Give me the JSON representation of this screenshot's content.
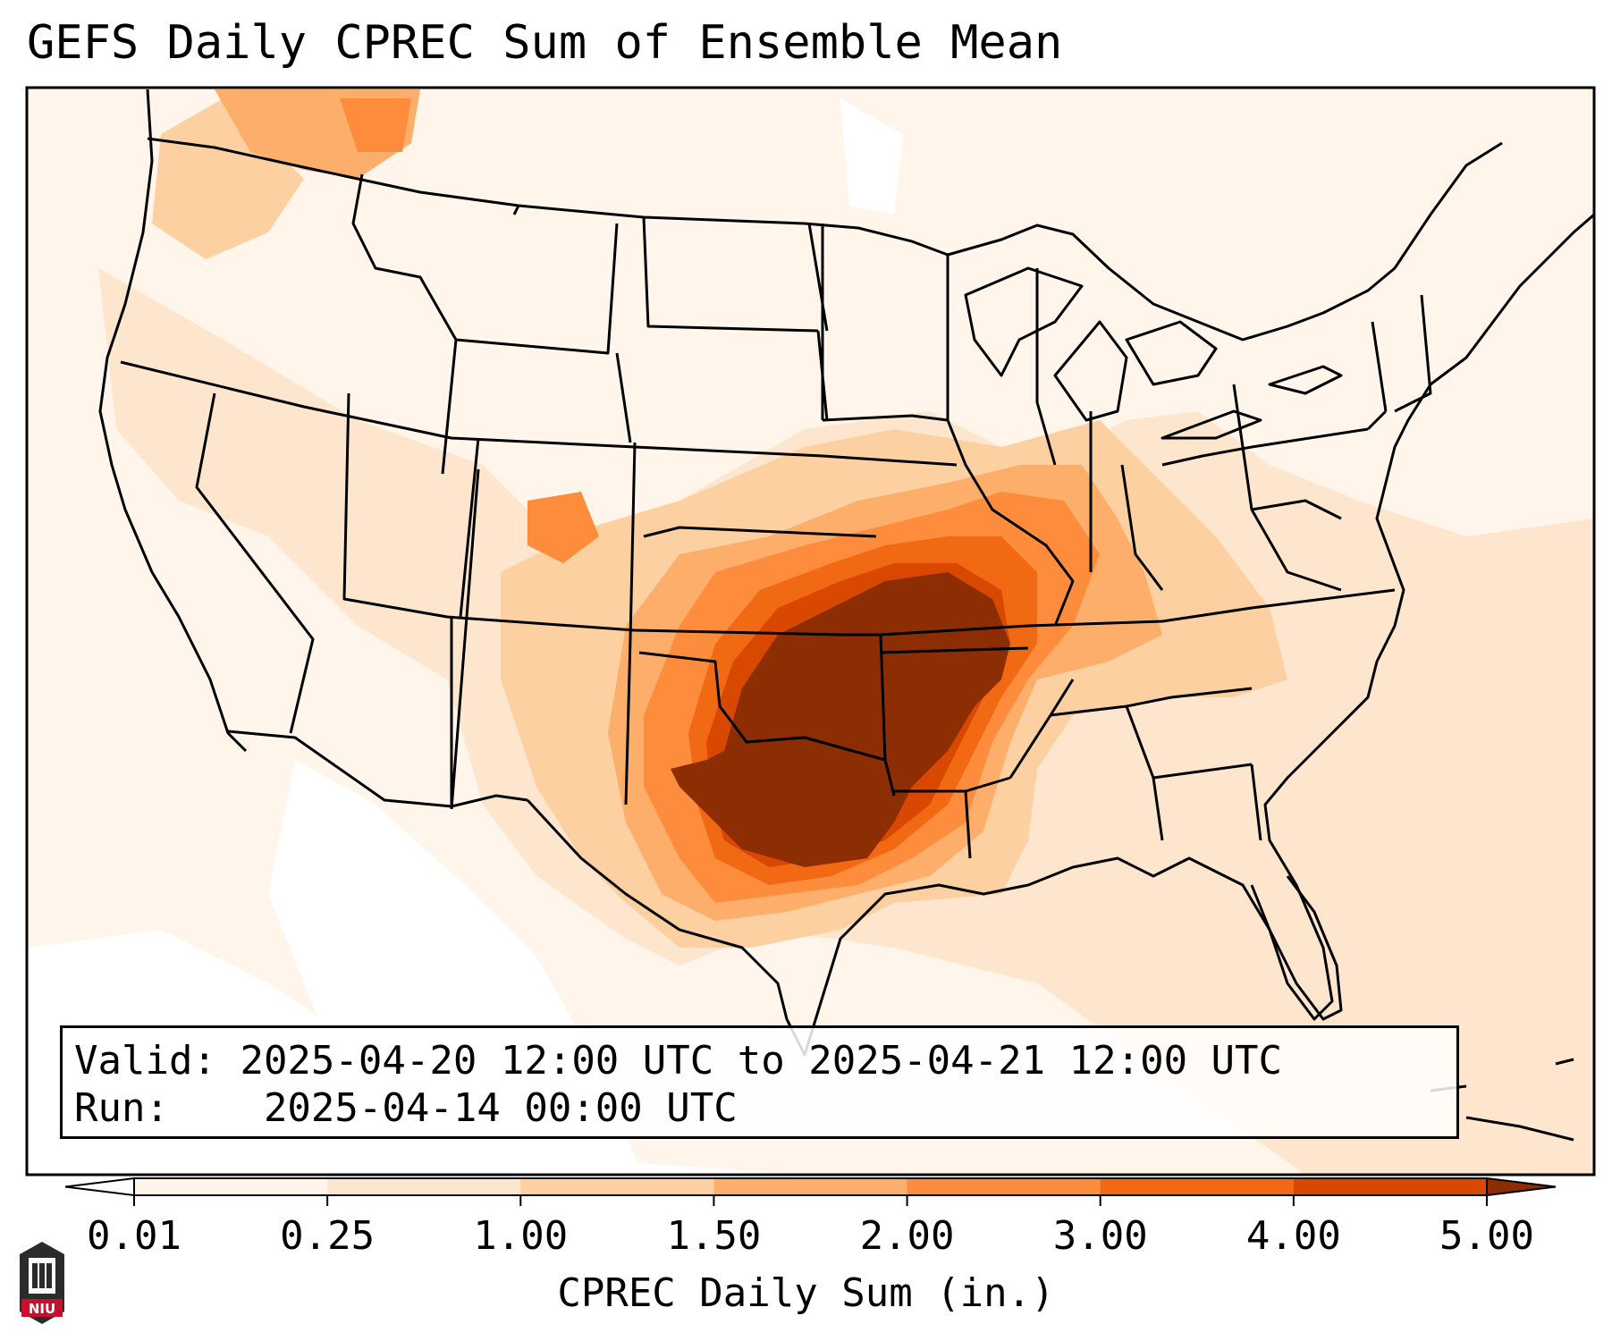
{
  "title": "GEFS Daily CPREC Sum of Ensemble Mean",
  "info_box": {
    "valid_label": "Valid:",
    "valid_value": "2025-04-20 12:00 UTC to 2025-04-21 12:00 UTC",
    "run_label": "Run:",
    "run_value": "2025-04-14 00:00 UTC"
  },
  "colorbar": {
    "label": "CPREC Daily Sum (in.)",
    "ticks": [
      "0.01",
      "0.25",
      "1.00",
      "1.50",
      "2.00",
      "3.00",
      "4.00",
      "5.00"
    ],
    "colors": [
      "#fff5eb",
      "#fee6ce",
      "#fdd0a2",
      "#fdae6b",
      "#fd8d3c",
      "#f16913",
      "#d94801",
      "#8c2d04"
    ],
    "under_color": "#ffffff",
    "over_color": "#8c2d04",
    "extend": "both"
  },
  "map": {
    "region": "Contiguous United States",
    "variable": "CPREC",
    "units": "in.",
    "max_category_area": "Oklahoma, Arkansas, north Texas, southern Missouri"
  },
  "logo": {
    "text": "NIU"
  }
}
